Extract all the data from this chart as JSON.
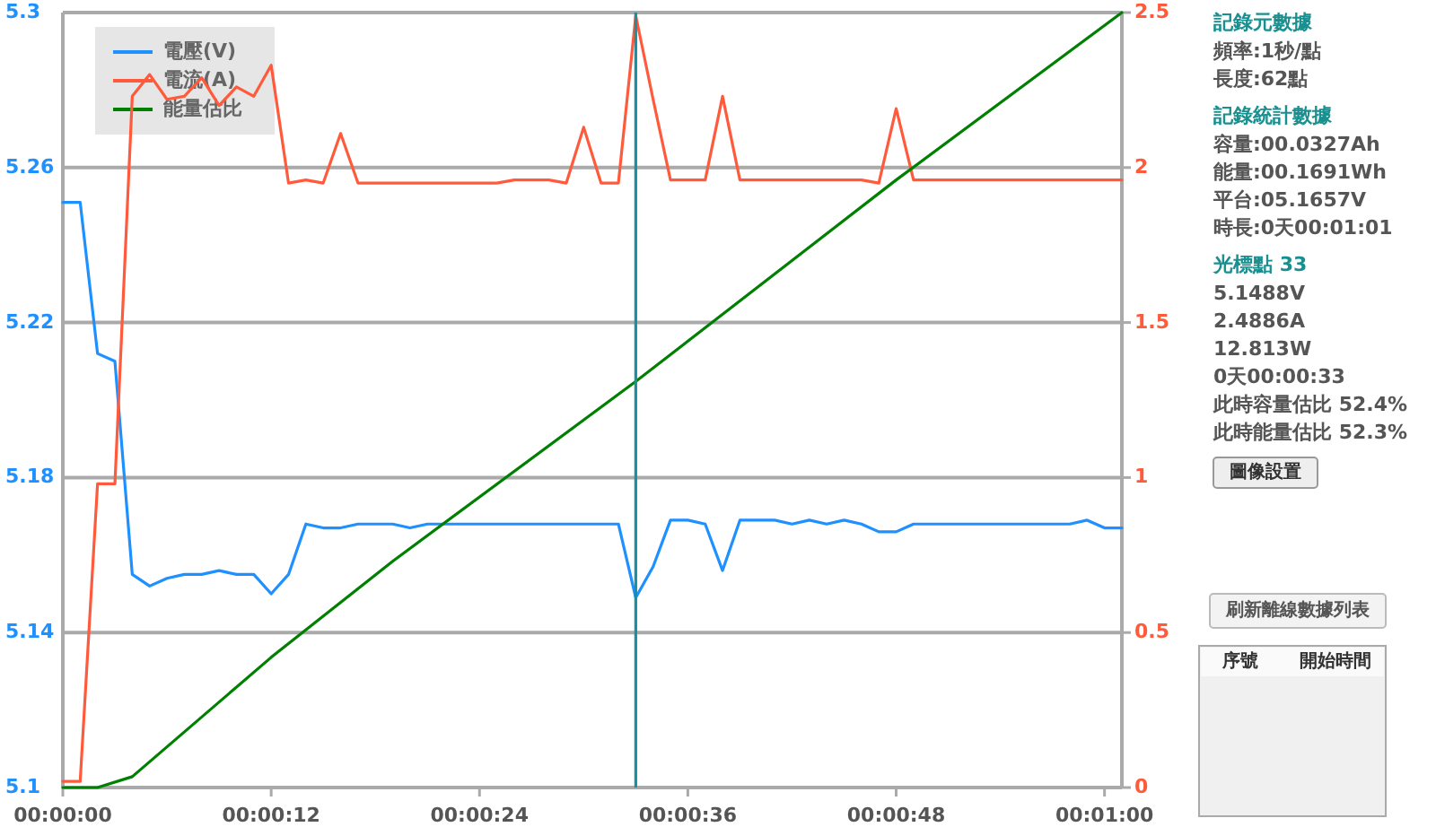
{
  "chart_data": [
    {
      "type": "line",
      "xlim": [
        0,
        61
      ],
      "xticks": [
        {
          "value": 0,
          "label": "00:00:00"
        },
        {
          "value": 12,
          "label": "00:00:12"
        },
        {
          "value": 24,
          "label": "00:00:24"
        },
        {
          "value": 36,
          "label": "00:00:36"
        },
        {
          "value": 48,
          "label": "00:00:48"
        },
        {
          "value": 60,
          "label": "00:01:00"
        }
      ],
      "ylim": [
        5.1,
        5.3
      ],
      "yticks": [
        5.1,
        5.14,
        5.18,
        5.22,
        5.26,
        5.3
      ],
      "y2lim": [
        0,
        2.5
      ],
      "y2ticks": [
        0,
        0.5,
        1,
        1.5,
        2,
        2.5
      ],
      "grid": "y",
      "legend": "top left",
      "x": [
        0,
        1,
        2,
        3,
        4,
        5,
        6,
        7,
        8,
        9,
        10,
        11,
        12,
        13,
        14,
        15,
        16,
        17,
        18,
        19,
        20,
        21,
        22,
        23,
        24,
        25,
        26,
        27,
        28,
        29,
        30,
        31,
        32,
        33,
        34,
        35,
        36,
        37,
        38,
        39,
        40,
        41,
        42,
        43,
        44,
        45,
        46,
        47,
        48,
        49,
        50,
        51,
        52,
        53,
        54,
        55,
        56,
        57,
        58,
        59,
        60,
        61
      ],
      "series": [
        {
          "name": "電壓(V)",
          "color": "#1e90ff",
          "values": [
            5.251,
            5.251,
            5.212,
            5.21,
            5.155,
            5.152,
            5.154,
            5.155,
            5.155,
            5.156,
            5.155,
            5.155,
            5.15,
            5.155,
            5.168,
            5.167,
            5.167,
            5.168,
            5.168,
            5.168,
            5.167,
            5.168,
            5.168,
            5.168,
            5.168,
            5.168,
            5.168,
            5.168,
            5.168,
            5.168,
            5.168,
            5.168,
            5.168,
            5.149,
            5.157,
            5.169,
            5.169,
            5.168,
            5.156,
            5.169,
            5.169,
            5.169,
            5.168,
            5.169,
            5.168,
            5.169,
            5.168,
            5.166,
            5.166,
            5.168,
            5.168,
            5.168,
            5.168,
            5.168,
            5.168,
            5.168,
            5.168,
            5.168,
            5.168,
            5.169,
            5.167,
            5.167
          ]
        },
        {
          "name": "電流(A)",
          "color": "#ff5a3c",
          "axis": "y2",
          "values": [
            0.02,
            0.02,
            0.98,
            0.98,
            2.23,
            2.3,
            2.22,
            2.23,
            2.29,
            2.2,
            2.26,
            2.23,
            2.33,
            1.95,
            1.96,
            1.95,
            2.11,
            1.95,
            1.95,
            1.95,
            1.95,
            1.95,
            1.95,
            1.95,
            1.95,
            1.95,
            1.96,
            1.96,
            1.96,
            1.95,
            2.13,
            1.95,
            1.95,
            2.49,
            2.22,
            1.96,
            1.96,
            1.96,
            2.23,
            1.96,
            1.96,
            1.96,
            1.96,
            1.96,
            1.96,
            1.96,
            1.96,
            1.95,
            2.19,
            1.96,
            1.96,
            1.96,
            1.96,
            1.96,
            1.96,
            1.96,
            1.96,
            1.96,
            1.96,
            1.96,
            1.96,
            1.96
          ]
        },
        {
          "name": "能量估比",
          "color": "#008000",
          "axis": "y2",
          "x": [
            0,
            2,
            4,
            12,
            19,
            33,
            48,
            61
          ],
          "values": [
            0,
            0,
            0.035,
            0.42,
            0.73,
            1.31,
            1.96,
            2.5
          ]
        }
      ],
      "ref_lines": [
        {
          "axis": "x",
          "value": 33,
          "color": "#1a8fa0"
        }
      ]
    },
    {
      "type": "other",
      "title": "記錄元數據",
      "annotations": [
        "頻率:1秒/點",
        "長度:62點"
      ]
    },
    {
      "type": "other",
      "title": "記錄統計數據",
      "annotations": [
        "容量:00.0327Ah",
        "能量:00.1691Wh",
        "平台:05.1657V",
        "時長:0天00:01:01"
      ]
    },
    {
      "type": "other",
      "title": "光標點 33",
      "annotations": [
        "5.1488V",
        "2.4886A",
        "12.813W",
        "0天00:00:33",
        "此時容量估比 52.4%",
        "此時能量估比 52.3%"
      ]
    },
    {
      "type": "other",
      "annotations": [
        "圖像設置",
        "刷新離線數據列表",
        "序號",
        "開始時間"
      ]
    }
  ]
}
